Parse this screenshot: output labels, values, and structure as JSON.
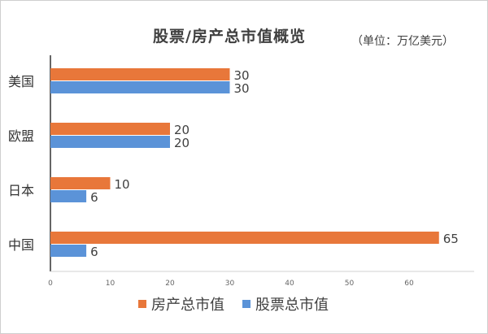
{
  "chart_data": {
    "type": "bar",
    "orientation": "horizontal",
    "title": "股票/房产总市值概览",
    "unit": "（单位：万亿美元）",
    "categories": [
      "美国",
      "欧盟",
      "日本",
      "中国"
    ],
    "series": [
      {
        "name": "房产总市值",
        "color": "#e8773a",
        "values": [
          30,
          20,
          10,
          65
        ]
      },
      {
        "name": "股票总市值",
        "color": "#5b93d8",
        "values": [
          30,
          20,
          6,
          6
        ]
      }
    ],
    "xlim": [
      0,
      70
    ],
    "xticks": [
      "0",
      "10",
      "20",
      "30",
      "40",
      "50",
      "60"
    ],
    "grid": false,
    "legend_position": "bottom"
  }
}
